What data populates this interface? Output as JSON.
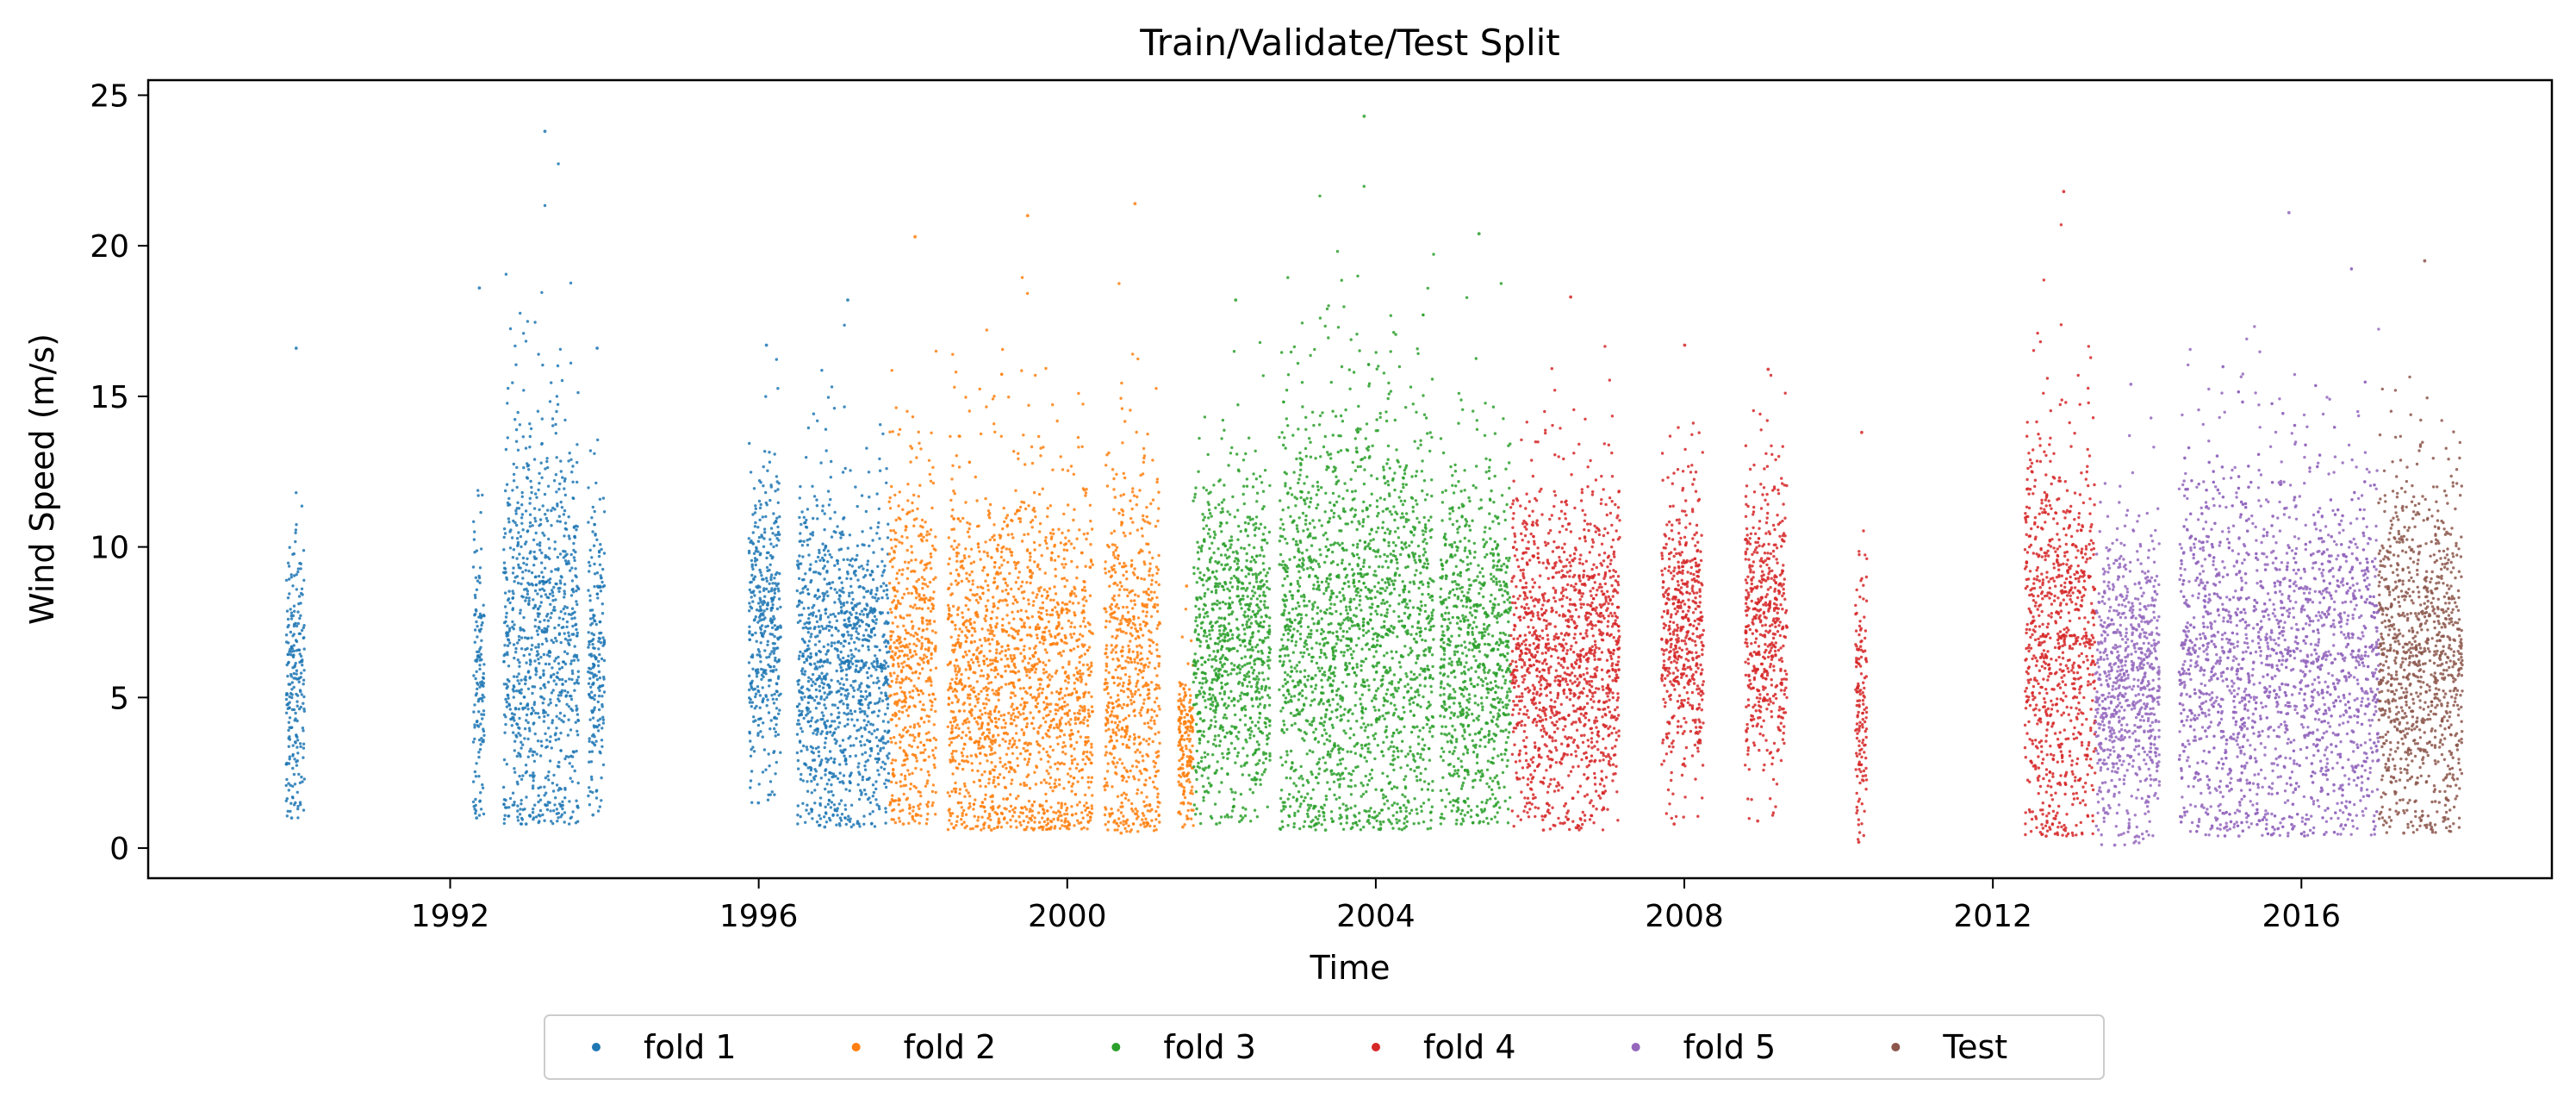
{
  "chart_data": {
    "type": "scatter",
    "title": "Train/Validate/Test Split",
    "xlabel": "Time",
    "ylabel": "Wind Speed (m/s)",
    "x_is_date": true,
    "xlim": [
      "1988-02-01",
      "2019-04-01"
    ],
    "ylim": [
      -1,
      25.5
    ],
    "x_ticks": [
      "1992-01-01",
      "1996-01-01",
      "2000-01-01",
      "2004-01-01",
      "2008-01-01",
      "2012-01-01",
      "2016-01-01"
    ],
    "x_tick_labels": [
      "1992",
      "1996",
      "2000",
      "2004",
      "2008",
      "2012",
      "2016"
    ],
    "y_ticks": [
      0,
      5,
      10,
      15,
      20,
      25
    ],
    "grid": false,
    "legend_position": "bottom-center, below axes",
    "series": [
      {
        "name": "fold 1",
        "color": "#1f77b4",
        "bursts": [
          {
            "start": "1989-11-15",
            "end": "1990-02-10",
            "low": 1.0,
            "high": 16.6,
            "mean": 5.3
          },
          {
            "start": "1992-04-20",
            "end": "1992-06-10",
            "low": 1.0,
            "high": 18.6,
            "mean": 6.0
          },
          {
            "start": "1992-09-10",
            "end": "1993-09-01",
            "low": 0.8,
            "high": 23.8,
            "mean": 7.0
          },
          {
            "start": "1993-10-15",
            "end": "1994-01-01",
            "low": 1.1,
            "high": 16.6,
            "mean": 6.5
          },
          {
            "start": "1995-11-15",
            "end": "1996-04-15",
            "low": 1.5,
            "high": 16.7,
            "mean": 7.5
          },
          {
            "start": "1996-07-01",
            "end": "1997-09-10",
            "low": 0.7,
            "high": 18.2,
            "mean": 6.0
          }
        ]
      },
      {
        "name": "fold 2",
        "color": "#ff7f0e",
        "bursts": [
          {
            "start": "1997-09-10",
            "end": "1998-04-20",
            "low": 0.8,
            "high": 20.3,
            "mean": 6.2
          },
          {
            "start": "1998-06-15",
            "end": "2000-05-01",
            "low": 0.6,
            "high": 21.0,
            "mean": 5.7
          },
          {
            "start": "2000-06-25",
            "end": "2001-03-15",
            "low": 0.5,
            "high": 21.4,
            "mean": 6.0
          },
          {
            "start": "2001-06-10",
            "end": "2001-08-20",
            "low": 0.7,
            "high": 8.7,
            "mean": 3.5
          }
        ]
      },
      {
        "name": "fold 3",
        "color": "#2ca02c",
        "bursts": [
          {
            "start": "2001-08-20",
            "end": "2002-08-20",
            "low": 0.8,
            "high": 18.2,
            "mean": 6.8
          },
          {
            "start": "2002-10-01",
            "end": "2004-10-01",
            "low": 0.6,
            "high": 24.3,
            "mean": 7.2
          },
          {
            "start": "2004-11-01",
            "end": "2005-10-01",
            "low": 0.8,
            "high": 20.4,
            "mean": 6.5
          }
        ]
      },
      {
        "name": "fold 4",
        "color": "#d62728",
        "bursts": [
          {
            "start": "2005-10-01",
            "end": "2007-03-01",
            "low": 0.6,
            "high": 18.3,
            "mean": 6.5
          },
          {
            "start": "2007-09-15",
            "end": "2008-04-01",
            "low": 0.8,
            "high": 16.7,
            "mean": 7.5
          },
          {
            "start": "2008-10-15",
            "end": "2009-05-01",
            "low": 0.9,
            "high": 15.9,
            "mean": 7.5
          },
          {
            "start": "2010-03-20",
            "end": "2010-05-15",
            "low": 0.2,
            "high": 13.8,
            "mean": 5.0
          },
          {
            "start": "2012-06-01",
            "end": "2013-05-01",
            "low": 0.4,
            "high": 21.8,
            "mean": 6.8
          }
        ]
      },
      {
        "name": "fold 5",
        "color": "#9467bd",
        "bursts": [
          {
            "start": "2013-05-01",
            "end": "2014-03-01",
            "low": 0.1,
            "high": 15.4,
            "mean": 5.5
          },
          {
            "start": "2014-06-01",
            "end": "2017-01-01",
            "low": 0.4,
            "high": 21.1,
            "mean": 6.3
          }
        ]
      },
      {
        "name": "Test",
        "color": "#8c564b",
        "bursts": [
          {
            "start": "2017-01-01",
            "end": "2018-02-01",
            "low": 0.5,
            "high": 19.5,
            "mean": 6.3
          }
        ]
      }
    ]
  }
}
